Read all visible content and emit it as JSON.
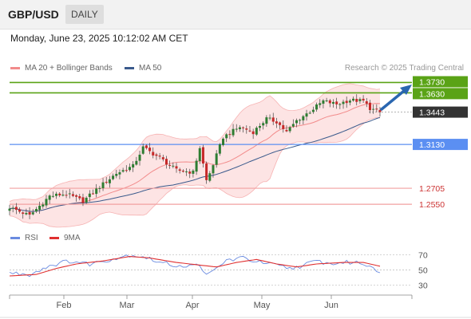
{
  "header": {
    "pair": "GBP/USD",
    "timeframe": "DAILY"
  },
  "datetime": "Monday, June 23, 2025 10:12:02 AM CET",
  "legend": {
    "bb_label": "MA 20 + Bollinger Bands",
    "ma50_label": "MA 50",
    "credit": "Research © 2025 Trading Central",
    "rsi_label": "RSI",
    "ma9_label": "9MA"
  },
  "colors": {
    "bb": "#f28b8b",
    "bb_fill": "#fde4e4",
    "ma50": "#3a5a8c",
    "resistance": "#5aa316",
    "support": "#5b8ff2",
    "weak_support": "#f2a0a0",
    "rsi": "#6a8be0",
    "ma9": "#e03030",
    "up_candle": "#2e7d32",
    "down_candle": "#c62828",
    "arrow": "#2a66b0"
  },
  "chart_data": [
    {
      "type": "candlestick",
      "x_axis_labels": [
        "Feb",
        "Mar",
        "Apr",
        "May",
        "Jun"
      ],
      "ylim": [
        1.235,
        1.378
      ],
      "levels": [
        {
          "value": 1.373,
          "label": "1.3730",
          "kind": "resistance"
        },
        {
          "value": 1.363,
          "label": "1.3630",
          "kind": "resistance"
        },
        {
          "value": 1.3443,
          "label": "1.3443",
          "kind": "last"
        },
        {
          "value": 1.313,
          "label": "1.3130",
          "kind": "support"
        },
        {
          "value": 1.2705,
          "label": "1.2705",
          "kind": "weak_support"
        },
        {
          "value": 1.255,
          "label": "1.2550",
          "kind": "weak_support"
        }
      ],
      "close_anchors": [
        [
          0,
          1.252
        ],
        [
          6,
          1.244
        ],
        [
          12,
          1.263
        ],
        [
          17,
          1.265
        ],
        [
          22,
          1.258
        ],
        [
          27,
          1.272
        ],
        [
          32,
          1.285
        ],
        [
          37,
          1.292
        ],
        [
          40,
          1.31
        ],
        [
          45,
          1.3
        ],
        [
          50,
          1.288
        ],
        [
          55,
          1.286
        ],
        [
          57,
          1.31
        ],
        [
          59,
          1.278
        ],
        [
          60,
          1.285
        ],
        [
          64,
          1.32
        ],
        [
          69,
          1.33
        ],
        [
          73,
          1.325
        ],
        [
          77,
          1.338
        ],
        [
          80,
          1.335
        ],
        [
          83,
          1.325
        ],
        [
          86,
          1.336
        ],
        [
          90,
          1.345
        ],
        [
          94,
          1.355
        ],
        [
          98,
          1.352
        ],
        [
          102,
          1.356
        ],
        [
          106,
          1.355
        ],
        [
          108,
          1.348
        ],
        [
          111,
          1.344
        ]
      ],
      "candle_count": 112
    },
    {
      "type": "line",
      "name": "RSI",
      "ylim": [
        25,
        75
      ],
      "y_ticks": [
        70,
        50,
        30
      ],
      "series": [
        {
          "name": "RSI",
          "anchors": [
            [
              0,
              46
            ],
            [
              6,
              44
            ],
            [
              12,
              56
            ],
            [
              18,
              62
            ],
            [
              24,
              58
            ],
            [
              30,
              64
            ],
            [
              36,
              70
            ],
            [
              40,
              68
            ],
            [
              45,
              60
            ],
            [
              50,
              56
            ],
            [
              55,
              55
            ],
            [
              57,
              58
            ],
            [
              59,
              42
            ],
            [
              61,
              48
            ],
            [
              65,
              63
            ],
            [
              70,
              66
            ],
            [
              75,
              60
            ],
            [
              80,
              56
            ],
            [
              84,
              52
            ],
            [
              88,
              56
            ],
            [
              92,
              62
            ],
            [
              96,
              58
            ],
            [
              100,
              60
            ],
            [
              104,
              60
            ],
            [
              108,
              56
            ],
            [
              111,
              48
            ]
          ]
        },
        {
          "name": "9MA",
          "anchors": [
            [
              0,
              42
            ],
            [
              8,
              44
            ],
            [
              14,
              52
            ],
            [
              20,
              58
            ],
            [
              28,
              62
            ],
            [
              36,
              68
            ],
            [
              42,
              66
            ],
            [
              50,
              60
            ],
            [
              58,
              56
            ],
            [
              62,
              54
            ],
            [
              68,
              60
            ],
            [
              74,
              64
            ],
            [
              80,
              58
            ],
            [
              86,
              54
            ],
            [
              92,
              58
            ],
            [
              100,
              60
            ],
            [
              106,
              60
            ],
            [
              111,
              55
            ]
          ]
        }
      ]
    }
  ]
}
